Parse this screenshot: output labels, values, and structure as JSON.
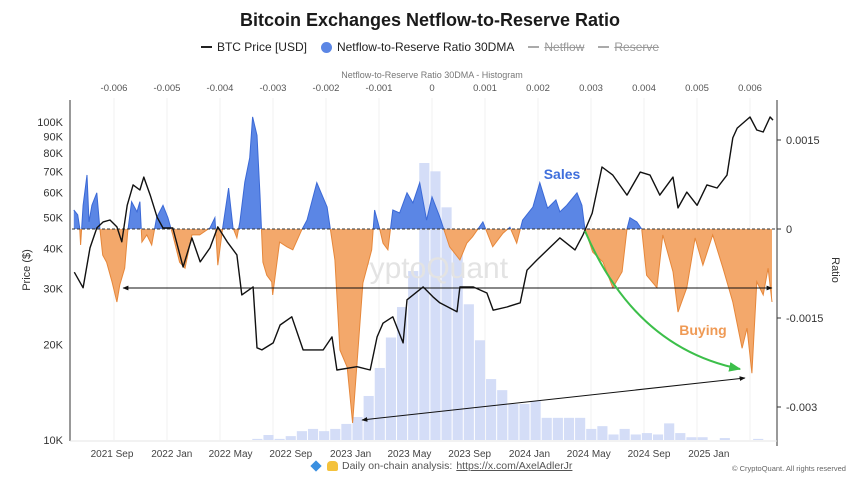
{
  "title": "Bitcoin Exchanges Netflow-to-Reserve Ratio",
  "legend": [
    {
      "label": "BTC Price [USD]",
      "marker": "line",
      "color": "#222222",
      "visible": true
    },
    {
      "label": "Netflow-to-Reserve Ratio 30DMA",
      "marker": "circle",
      "color": "#5b86e5",
      "visible": true
    },
    {
      "label": "Netflow",
      "marker": "line",
      "color": "#aaaaaa",
      "visible": false
    },
    {
      "label": "Reserve",
      "marker": "line",
      "color": "#aaaaaa",
      "visible": false
    }
  ],
  "footer": {
    "icons": [
      "gem-icon",
      "raised-hands-icon"
    ],
    "text": "Daily on-chain analysis:",
    "link": "https://x.com/AxelAdlerJr",
    "copyright": "© CryptoQuant. All rights reserved"
  },
  "watermark": "CryptoQuant",
  "annotations": {
    "sales": "Sales",
    "buying": "Buying"
  },
  "colors": {
    "positive": "#5b86e5",
    "negative": "#f3a86b",
    "price": "#111111",
    "histogram": "#d4ddf7",
    "arrow_green": "#3cbf4a"
  },
  "chart_data": {
    "type": "line",
    "title": "Bitcoin Exchanges Netflow-to-Reserve Ratio",
    "legend_position": "top",
    "x_axis": {
      "type": "date",
      "range": [
        "2021-06-14",
        "2025-05-15"
      ],
      "ticks": [
        {
          "label": "2021 Sep",
          "date": "2021-09-01"
        },
        {
          "label": "2022 Jan",
          "date": "2022-01-01"
        },
        {
          "label": "2022 May",
          "date": "2022-05-01"
        },
        {
          "label": "2022 Sep",
          "date": "2022-09-01"
        },
        {
          "label": "2023 Jan",
          "date": "2023-01-01"
        },
        {
          "label": "2023 May",
          "date": "2023-05-01"
        },
        {
          "label": "2023 Sep",
          "date": "2023-09-01"
        },
        {
          "label": "2024 Jan",
          "date": "2024-01-01"
        },
        {
          "label": "2024 May",
          "date": "2024-05-01"
        },
        {
          "label": "2024 Sep",
          "date": "2024-09-01"
        },
        {
          "label": "2025 Jan",
          "date": "2025-01-01"
        }
      ]
    },
    "y_left": {
      "label": "Price ($)",
      "scale": "log",
      "range": [
        10000,
        120000
      ],
      "ticks": [
        {
          "label": "10K",
          "value": 10000
        },
        {
          "label": "20K",
          "value": 20000
        },
        {
          "label": "30K",
          "value": 30000
        },
        {
          "label": "40K",
          "value": 40000
        },
        {
          "label": "50K",
          "value": 50000
        },
        {
          "label": "60K",
          "value": 60000
        },
        {
          "label": "70K",
          "value": 70000
        },
        {
          "label": "80K",
          "value": 80000
        },
        {
          "label": "90K",
          "value": 90000
        },
        {
          "label": "100K",
          "value": 100000
        }
      ]
    },
    "y_right": {
      "label": "Ratio",
      "scale": "linear",
      "range": [
        -0.0036,
        0.0022
      ],
      "ticks": [
        {
          "label": "0.0015",
          "value": 0.0015
        },
        {
          "label": "0",
          "value": 0
        },
        {
          "label": "-0.0015",
          "value": -0.0015
        },
        {
          "label": "-0.003",
          "value": -0.003
        }
      ]
    },
    "x_top": {
      "label": "Netflow-to-Reserve Ratio 30DMA - Histogram",
      "ticks": [
        {
          "label": "-0.006",
          "value": -0.006
        },
        {
          "label": "-0.005",
          "value": -0.005
        },
        {
          "label": "-0.004",
          "value": -0.004
        },
        {
          "label": "-0.003",
          "value": -0.003
        },
        {
          "label": "-0.002",
          "value": -0.002
        },
        {
          "label": "-0.001",
          "value": -0.001
        },
        {
          "label": "0",
          "value": 0
        },
        {
          "label": "0.001",
          "value": 0.001
        },
        {
          "label": "0.002",
          "value": 0.002
        },
        {
          "label": "0.003",
          "value": 0.003
        },
        {
          "label": "0.004",
          "value": 0.004
        },
        {
          "label": "0.005",
          "value": 0.005
        },
        {
          "label": "0.006",
          "value": 0.006
        }
      ]
    },
    "series": [
      {
        "name": "BTC Price [USD]",
        "axis": "left",
        "type": "line",
        "points": [
          [
            "2021-06-16",
            33700
          ],
          [
            "2021-07-04",
            30100
          ],
          [
            "2021-07-18",
            40200
          ],
          [
            "2021-08-01",
            46400
          ],
          [
            "2021-08-14",
            48500
          ],
          [
            "2021-08-28",
            49200
          ],
          [
            "2021-09-11",
            46800
          ],
          [
            "2021-09-21",
            42000
          ],
          [
            "2021-10-02",
            54700
          ],
          [
            "2021-10-14",
            63400
          ],
          [
            "2021-10-28",
            61100
          ],
          [
            "2021-11-05",
            67100
          ],
          [
            "2021-11-18",
            58900
          ],
          [
            "2021-12-02",
            50200
          ],
          [
            "2021-12-14",
            46400
          ],
          [
            "2022-01-03",
            46400
          ],
          [
            "2022-01-24",
            35000
          ],
          [
            "2022-02-11",
            43200
          ],
          [
            "2022-02-28",
            36300
          ],
          [
            "2022-03-20",
            40200
          ],
          [
            "2022-04-05",
            46800
          ],
          [
            "2022-04-24",
            42000
          ],
          [
            "2022-05-14",
            38200
          ],
          [
            "2022-05-24",
            28600
          ],
          [
            "2022-06-16",
            30300
          ],
          [
            "2022-06-24",
            19500
          ],
          [
            "2022-07-04",
            19200
          ],
          [
            "2022-07-27",
            20200
          ],
          [
            "2022-08-10",
            23000
          ],
          [
            "2022-09-03",
            24400
          ],
          [
            "2022-09-26",
            19200
          ],
          [
            "2022-11-06",
            19200
          ],
          [
            "2022-11-24",
            21100
          ],
          [
            "2022-12-04",
            16600
          ],
          [
            "2023-01-14",
            17000
          ],
          [
            "2023-02-10",
            16600
          ],
          [
            "2023-02-24",
            21100
          ],
          [
            "2023-03-08",
            23300
          ],
          [
            "2023-03-28",
            24400
          ],
          [
            "2023-04-18",
            20200
          ],
          [
            "2023-04-26",
            27600
          ],
          [
            "2023-05-29",
            30300
          ],
          [
            "2023-06-18",
            28200
          ],
          [
            "2023-07-02",
            27000
          ],
          [
            "2023-08-06",
            25300
          ],
          [
            "2023-08-12",
            30300
          ],
          [
            "2023-09-08",
            30300
          ],
          [
            "2023-10-06",
            29000
          ],
          [
            "2023-10-19",
            25600
          ],
          [
            "2023-11-16",
            26200
          ],
          [
            "2023-12-13",
            27000
          ],
          [
            "2023-12-27",
            34200
          ],
          [
            "2024-01-16",
            36800
          ],
          [
            "2024-03-03",
            43200
          ],
          [
            "2024-04-03",
            39600
          ],
          [
            "2024-04-19",
            44100
          ],
          [
            "2024-05-08",
            51700
          ],
          [
            "2024-05-28",
            72200
          ],
          [
            "2024-06-19",
            68100
          ],
          [
            "2024-07-18",
            58900
          ],
          [
            "2024-08-14",
            69600
          ],
          [
            "2024-09-03",
            68100
          ],
          [
            "2024-09-23",
            58900
          ],
          [
            "2024-10-20",
            67100
          ],
          [
            "2024-10-30",
            53700
          ],
          [
            "2024-11-17",
            60200
          ],
          [
            "2024-12-08",
            54700
          ],
          [
            "2024-12-28",
            63400
          ],
          [
            "2025-01-18",
            62000
          ],
          [
            "2025-02-07",
            68100
          ],
          [
            "2025-02-19",
            89100
          ],
          [
            "2025-02-28",
            95700
          ],
          [
            "2025-03-26",
            103700
          ],
          [
            "2025-04-09",
            94400
          ],
          [
            "2025-04-22",
            93000
          ],
          [
            "2025-05-06",
            103700
          ],
          [
            "2025-05-12",
            101400
          ]
        ]
      },
      {
        "name": "Netflow-to-Reserve Ratio 30DMA",
        "axis": "right",
        "type": "area",
        "points": [
          [
            "2021-06-15",
            0.00032
          ],
          [
            "2021-06-23",
            0.00024
          ],
          [
            "2021-06-27",
            2e-05
          ],
          [
            "2021-06-29",
            -0.00027
          ],
          [
            "2021-07-04",
            0.0004
          ],
          [
            "2021-07-12",
            0.00091
          ],
          [
            "2021-07-16",
            0.00012
          ],
          [
            "2021-07-22",
            0.0004
          ],
          [
            "2021-08-01",
            0.00061
          ],
          [
            "2021-08-07",
            2e-05
          ],
          [
            "2021-08-13",
            -0.00044
          ],
          [
            "2021-08-21",
            -0.00056
          ],
          [
            "2021-09-01",
            -0.00089
          ],
          [
            "2021-09-11",
            -0.00123
          ],
          [
            "2021-09-17",
            -0.00094
          ],
          [
            "2021-09-27",
            -0.00066
          ],
          [
            "2021-10-03",
            -5e-05
          ],
          [
            "2021-10-11",
            0.00046
          ],
          [
            "2021-10-22",
            0.00029
          ],
          [
            "2021-10-28",
            0.00046
          ],
          [
            "2021-11-01",
            -0.00022
          ],
          [
            "2021-11-11",
            -0.0001
          ],
          [
            "2021-11-21",
            -0.00027
          ],
          [
            "2021-12-01",
            0.00019
          ],
          [
            "2021-12-14",
            0.0004
          ],
          [
            "2021-12-24",
            0.00019
          ],
          [
            "2022-01-03",
            -0.0001
          ],
          [
            "2022-01-17",
            -0.00056
          ],
          [
            "2022-01-28",
            -0.00066
          ],
          [
            "2022-02-11",
            -0.0001
          ],
          [
            "2022-02-27",
            -0.0001
          ],
          [
            "2022-03-20",
            2e-05
          ],
          [
            "2022-03-30",
            0.00019
          ],
          [
            "2022-04-05",
            -0.00061
          ],
          [
            "2022-04-15",
            2e-05
          ],
          [
            "2022-04-27",
            0.00069
          ],
          [
            "2022-05-06",
            2e-05
          ],
          [
            "2022-05-14",
            -0.00015
          ],
          [
            "2022-05-20",
            0.00012
          ],
          [
            "2022-05-30",
            0.00079
          ],
          [
            "2022-06-09",
            0.0012
          ],
          [
            "2022-06-15",
            0.00189
          ],
          [
            "2022-06-24",
            0.00158
          ],
          [
            "2022-06-30",
            0.00057
          ],
          [
            "2022-07-06",
            -0.00056
          ],
          [
            "2022-07-14",
            -0.00078
          ],
          [
            "2022-07-24",
            -0.00089
          ],
          [
            "2022-07-26",
            -0.00111
          ],
          [
            "2022-08-09",
            -0.00022
          ],
          [
            "2022-08-24",
            -0.0003
          ],
          [
            "2022-09-05",
            -0.00035
          ],
          [
            "2022-09-23",
            -2e-05
          ],
          [
            "2022-10-04",
            0.00015
          ],
          [
            "2022-10-24",
            0.00078
          ],
          [
            "2022-11-14",
            0.00037
          ],
          [
            "2022-11-30",
            -0.00052
          ],
          [
            "2022-12-10",
            -0.00204
          ],
          [
            "2022-12-25",
            -0.00233
          ],
          [
            "2023-01-05",
            -0.00327
          ],
          [
            "2023-01-16",
            -0.00204
          ],
          [
            "2023-01-26",
            -0.00091
          ],
          [
            "2023-02-13",
            -0.00035
          ],
          [
            "2023-02-19",
            0.00032
          ],
          [
            "2023-03-02",
            -2e-05
          ],
          [
            "2023-03-08",
            -0.00024
          ],
          [
            "2023-03-18",
            -0.00035
          ],
          [
            "2023-03-28",
            0.00032
          ],
          [
            "2023-04-11",
            0.00027
          ],
          [
            "2023-04-26",
            0.00061
          ],
          [
            "2023-05-08",
            0.00044
          ],
          [
            "2023-05-22",
            0.00078
          ],
          [
            "2023-06-05",
            0.00015
          ],
          [
            "2023-06-16",
            0.00054
          ],
          [
            "2023-07-02",
            0.0002
          ],
          [
            "2023-07-22",
            -0.0003
          ],
          [
            "2023-08-12",
            -0.00052
          ],
          [
            "2023-08-26",
            -0.00024
          ],
          [
            "2023-09-07",
            -0.00013
          ],
          [
            "2023-09-28",
            0.00012
          ],
          [
            "2023-10-18",
            -0.0003
          ],
          [
            "2023-11-08",
            -7e-05
          ],
          [
            "2023-11-22",
            3e-05
          ],
          [
            "2023-12-06",
            -0.00024
          ],
          [
            "2023-12-18",
            0.00015
          ],
          [
            "2024-01-08",
            0.00037
          ],
          [
            "2024-01-22",
            0.00078
          ],
          [
            "2024-02-07",
            0.00035
          ],
          [
            "2024-02-24",
            0.00049
          ],
          [
            "2024-03-03",
            0.00029
          ],
          [
            "2024-03-17",
            0.0004
          ],
          [
            "2024-04-07",
            0.00061
          ],
          [
            "2024-04-17",
            0.0004
          ],
          [
            "2024-04-23",
            0
          ],
          [
            "2024-05-09",
            -0.00039
          ],
          [
            "2024-05-30",
            -0.00056
          ],
          [
            "2024-06-19",
            -0.00099
          ],
          [
            "2024-07-08",
            -0.00072
          ],
          [
            "2024-07-18",
            0
          ],
          [
            "2024-07-24",
            0.00019
          ],
          [
            "2024-08-07",
            0.00012
          ],
          [
            "2024-08-17",
            0
          ],
          [
            "2024-08-27",
            -0.00078
          ],
          [
            "2024-09-17",
            -0.00099
          ],
          [
            "2024-09-29",
            -0.0001
          ],
          [
            "2024-10-20",
            -0.00072
          ],
          [
            "2024-10-30",
            -0.0014
          ],
          [
            "2024-11-17",
            -0.00099
          ],
          [
            "2024-12-04",
            -0.00015
          ],
          [
            "2024-12-20",
            -0.00061
          ],
          [
            "2025-01-09",
            -0.0001
          ],
          [
            "2025-01-30",
            -0.00066
          ],
          [
            "2025-02-19",
            -0.00123
          ],
          [
            "2025-03-10",
            -0.00201
          ],
          [
            "2025-03-20",
            -0.00167
          ],
          [
            "2025-03-30",
            -0.00243
          ],
          [
            "2025-04-09",
            -0.00089
          ],
          [
            "2025-04-22",
            -0.00111
          ],
          [
            "2025-05-02",
            -0.00066
          ],
          [
            "2025-05-10",
            -0.00123
          ]
        ]
      },
      {
        "name": "Netflow-to-Reserve Ratio 30DMA - Histogram",
        "axis": "top",
        "type": "histogram",
        "bin_start": -0.0034,
        "bin_width": 0.00021,
        "relative_frequency": [
          0.4,
          1.8,
          0.4,
          1.4,
          3.2,
          4,
          3.2,
          4,
          5.8,
          8.3,
          15.9,
          26,
          37,
          48,
          61,
          100,
          97,
          84,
          72,
          49,
          36,
          22,
          18,
          13,
          13,
          14,
          8,
          8,
          8,
          8,
          4,
          5,
          2,
          4,
          2,
          2.5,
          2,
          6,
          2.5,
          1,
          1,
          0,
          0.7,
          0,
          0,
          0.4
        ]
      }
    ]
  }
}
